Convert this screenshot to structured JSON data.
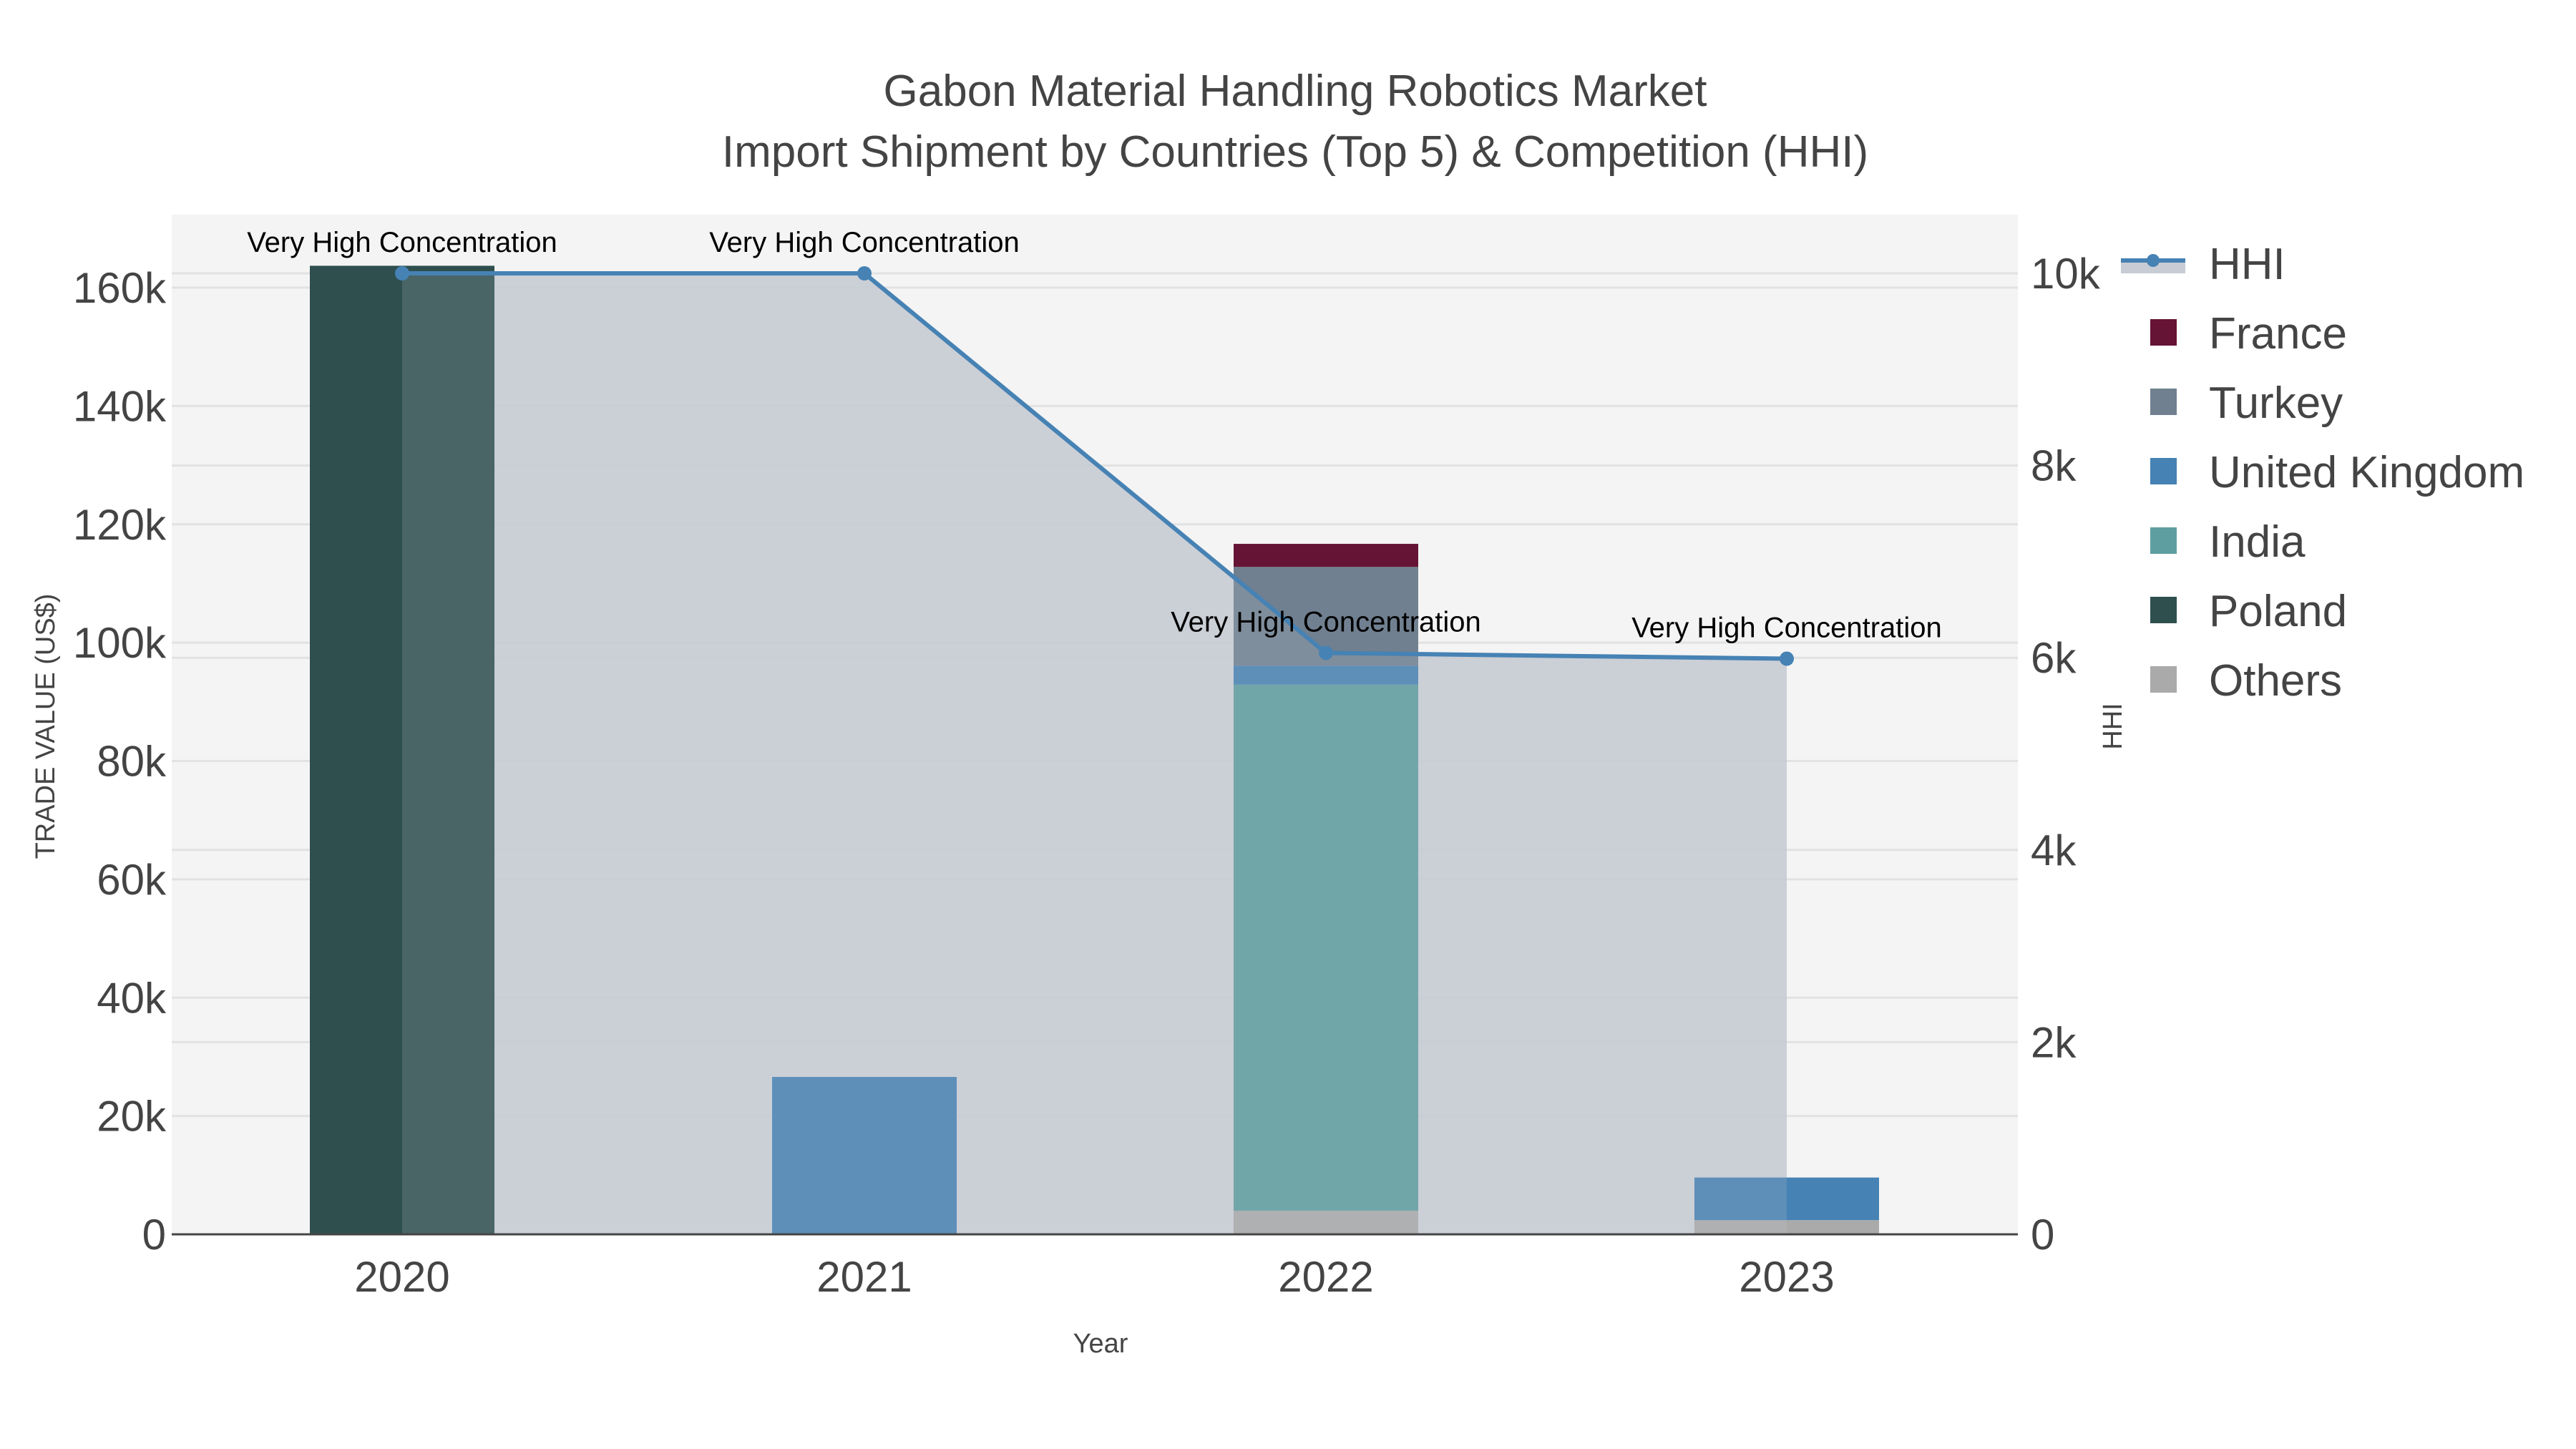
{
  "chart_data": {
    "type": "bar",
    "stacked": true,
    "title": "Gabon Material Handling Robotics Market",
    "subtitle": "Import Shipment by Countries (Top 5) & Competition (HHI)",
    "xlabel": "Year",
    "ylabel": "TRADE VALUE (US$)",
    "y2label": "HHI",
    "categories": [
      "2020",
      "2021",
      "2022",
      "2023"
    ],
    "ylim": [
      0,
      172000
    ],
    "y2lim": [
      0,
      10500
    ],
    "yticks": [
      0,
      20000,
      40000,
      60000,
      80000,
      100000,
      120000,
      140000,
      160000
    ],
    "ytick_labels": [
      "0",
      "20k",
      "40k",
      "60k",
      "80k",
      "100k",
      "120k",
      "140k",
      "160k"
    ],
    "y2ticks": [
      0,
      2000,
      4000,
      6000,
      8000,
      10000
    ],
    "y2tick_labels": [
      "0",
      "2k",
      "4k",
      "6k",
      "8k",
      "10k"
    ],
    "grid": true,
    "legend_position": "right",
    "series": [
      {
        "name": "Others",
        "color": "#aaaaaa",
        "values": [
          0,
          0,
          4000,
          2400
        ]
      },
      {
        "name": "Poland",
        "color": "#2f4f4f",
        "values": [
          163700,
          0,
          0,
          0
        ]
      },
      {
        "name": "India",
        "color": "#5f9ea0",
        "values": [
          0,
          0,
          88900,
          0
        ]
      },
      {
        "name": "United Kingdom",
        "color": "#4682b4",
        "values": [
          0,
          26600,
          3200,
          7200
        ]
      },
      {
        "name": "Turkey",
        "color": "#708090",
        "values": [
          0,
          0,
          16700,
          0
        ]
      },
      {
        "name": "France",
        "color": "#651435",
        "values": [
          0,
          0,
          3900,
          0
        ]
      }
    ],
    "line_series": {
      "name": "HHI",
      "axis": "y2",
      "color": "#4682b4",
      "fill_color": "#c8ccd4",
      "values": [
        10000,
        10000,
        6050,
        5990
      ],
      "annotations": [
        "Very High Concentration",
        "Very High Concentration",
        "Very High Concentration",
        "Very High Concentration"
      ]
    }
  },
  "legend": {
    "items": [
      {
        "name": "HHI",
        "label": "HHI",
        "type": "line"
      },
      {
        "name": "France",
        "label": "France",
        "color": "#651435"
      },
      {
        "name": "Turkey",
        "label": "Turkey",
        "color": "#708090"
      },
      {
        "name": "United Kingdom",
        "label": "United Kingdom",
        "color": "#4682b4"
      },
      {
        "name": "India",
        "label": "India",
        "color": "#5f9ea0"
      },
      {
        "name": "Poland",
        "label": "Poland",
        "color": "#2f4f4f"
      },
      {
        "name": "Others",
        "label": "Others",
        "color": "#aaaaaa"
      }
    ]
  },
  "colors": {
    "plot_bg": "#f4f4f4",
    "grid": "#e2e2e2",
    "text": "#444444"
  }
}
